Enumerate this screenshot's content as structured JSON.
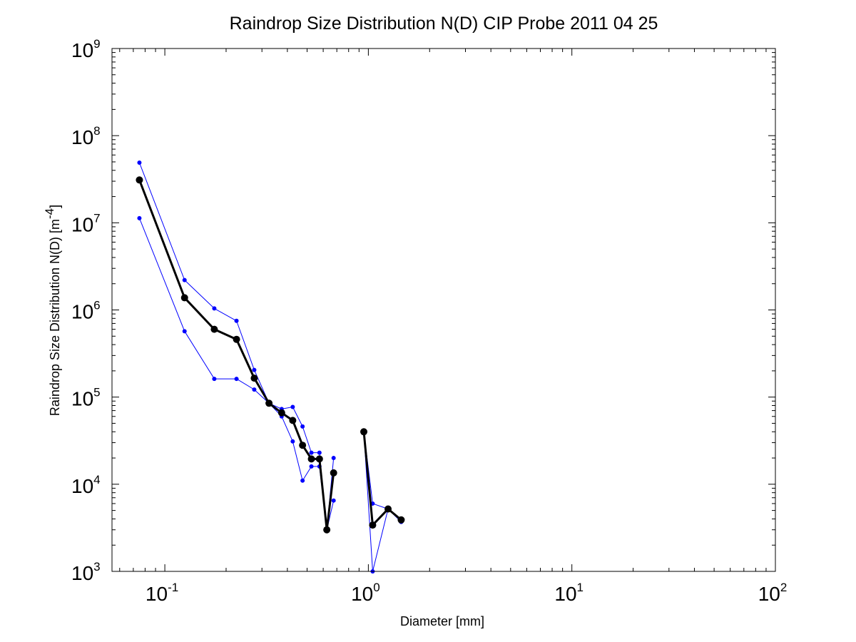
{
  "chart_data": {
    "type": "line",
    "title": "Raindrop Size Distribution N(D) CIP Probe 2011 04 25",
    "xlabel": "Diameter [mm]",
    "ylabel": "Raindrop Size Distribution N(D) [m",
    "ylabel_sup": "-4",
    "ylabel_end": "]",
    "xscale": "log",
    "yscale": "log",
    "xlim": [
      0.055,
      100
    ],
    "ylim": [
      1000,
      1000000000
    ],
    "grid": false,
    "x_ticks": [
      {
        "value": 0.1,
        "base": "10",
        "exp": "-1"
      },
      {
        "value": 1,
        "base": "10",
        "exp": "0"
      },
      {
        "value": 10,
        "base": "10",
        "exp": "1"
      },
      {
        "value": 100,
        "base": "10",
        "exp": "2"
      }
    ],
    "y_ticks": [
      {
        "value": 1000,
        "base": "10",
        "exp": "3"
      },
      {
        "value": 10000,
        "base": "10",
        "exp": "4"
      },
      {
        "value": 100000,
        "base": "10",
        "exp": "5"
      },
      {
        "value": 1000000,
        "base": "10",
        "exp": "6"
      },
      {
        "value": 10000000,
        "base": "10",
        "exp": "7"
      },
      {
        "value": 100000000,
        "base": "10",
        "exp": "8"
      },
      {
        "value": 1000000000,
        "base": "10",
        "exp": "9"
      }
    ],
    "series": [
      {
        "color": "#0000ff",
        "style": "thin-dots",
        "points": [
          [
            0.075,
            49000000
          ],
          [
            0.125,
            2200000
          ],
          [
            0.175,
            1040000
          ],
          [
            0.225,
            750000
          ],
          [
            0.275,
            205000
          ],
          [
            0.325,
            85000
          ],
          [
            0.375,
            73000
          ],
          [
            0.425,
            77000
          ],
          [
            0.475,
            46000
          ],
          [
            0.525,
            23000
          ],
          [
            0.575,
            23000
          ],
          [
            0.625,
            3000
          ],
          [
            0.675,
            20000
          ],
          [
            null,
            null
          ],
          [
            0.95,
            40000
          ],
          [
            1.05,
            6000
          ],
          [
            1.25,
            5200
          ],
          [
            1.45,
            3700
          ]
        ]
      },
      {
        "color": "#0000ff",
        "style": "thin-dots",
        "points": [
          [
            0.075,
            11300000
          ],
          [
            0.125,
            570000
          ],
          [
            0.175,
            162000
          ],
          [
            0.225,
            162000
          ],
          [
            0.275,
            122000
          ],
          [
            0.325,
            85000
          ],
          [
            0.375,
            60000
          ],
          [
            0.425,
            31000
          ],
          [
            0.475,
            11000
          ],
          [
            0.525,
            16000
          ],
          [
            0.575,
            16000
          ],
          [
            0.625,
            3000
          ],
          [
            0.675,
            6500
          ],
          [
            null,
            null
          ],
          [
            0.95,
            40000
          ],
          [
            1.05,
            1000
          ],
          [
            1.25,
            5200
          ],
          [
            1.45,
            3700
          ]
        ]
      },
      {
        "color": "#000000",
        "style": "thick-dots",
        "points": [
          [
            0.075,
            31000000
          ],
          [
            0.125,
            1380000
          ],
          [
            0.175,
            600000
          ],
          [
            0.225,
            460000
          ],
          [
            0.275,
            165000
          ],
          [
            0.325,
            85000
          ],
          [
            0.375,
            66000
          ],
          [
            0.425,
            54000
          ],
          [
            0.475,
            28000
          ],
          [
            0.525,
            19500
          ],
          [
            0.575,
            19500
          ],
          [
            0.625,
            3000
          ],
          [
            0.675,
            13500
          ],
          [
            null,
            null
          ],
          [
            0.95,
            40000
          ],
          [
            1.05,
            3400
          ],
          [
            1.25,
            5200
          ],
          [
            1.45,
            3900
          ]
        ]
      }
    ]
  }
}
